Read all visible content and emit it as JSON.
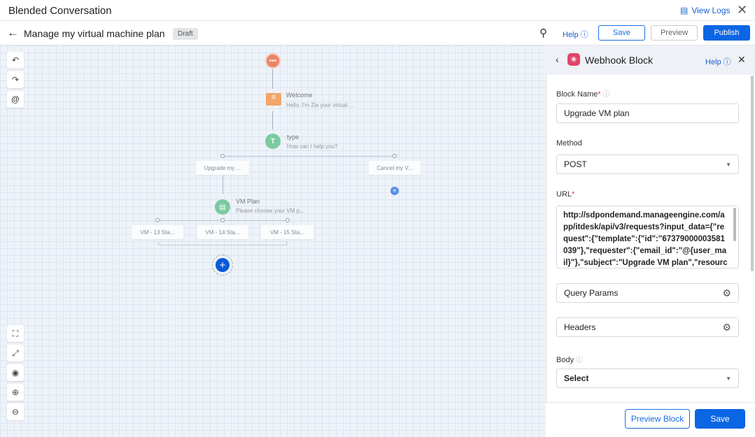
{
  "window": {
    "title": "Blended Conversation",
    "view_logs": "View Logs"
  },
  "header": {
    "title": "Manage my virtual machine plan",
    "status": "Draft",
    "help": "Help",
    "save": "Save",
    "preview": "Preview",
    "publish": "Publish"
  },
  "flow": {
    "welcome": {
      "title": "Welcome",
      "subtitle": "Hello, I'm Zia your virtual ..."
    },
    "type": {
      "title": "type",
      "subtitle": "How can I help you?"
    },
    "options": [
      "Upgrade my ...",
      "Cancel my V..."
    ],
    "vm_plan": {
      "title": "VM Plan",
      "subtitle": "Please choose your VM p..."
    },
    "vm_options": [
      "VM - 13 Sta...",
      "VM - 14 Sta...",
      "VM - 15 Sta..."
    ]
  },
  "panel": {
    "title": "Webhook Block",
    "help": "Help",
    "block_name_label": "Block Name",
    "block_name": "Upgrade VM plan",
    "method_label": "Method",
    "method": "POST",
    "url_label": "URL",
    "url": "http://sdpondemand.manageengine.com/app/itdesk/api/v3/requests?input_data={\"request\":{\"template\":{\"id\":\"67379000003581039\"},\"requester\":{\"email_id\":\"@{user_mail}\"},\"subject\":\"Upgrade VM plan\",\"resources\":",
    "query_params": "Query Params",
    "headers": "Headers",
    "body_label": "Body",
    "body": "Select",
    "preview_block": "Preview Block",
    "save": "Save"
  },
  "colors": {
    "accent": "#0a66e4",
    "webhook": "#e0456a",
    "welcome": "#f2a66a",
    "type": "#7ccaa0"
  }
}
